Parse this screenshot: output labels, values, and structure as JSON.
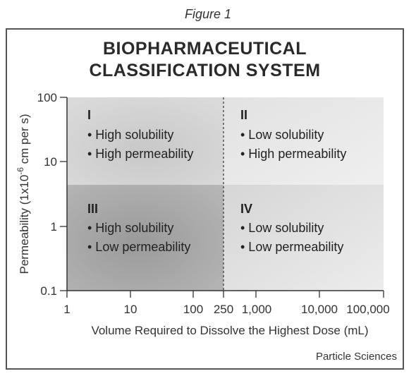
{
  "figure_label": "Figure 1",
  "title_line1": "BIOPHARMACEUTICAL",
  "title_line2": "CLASSIFICATION SYSTEM",
  "credit": "Particle Sciences",
  "axes": {
    "x_label": "Volume Required to Dissolve the Highest Dose (mL)",
    "y_label_prefix": "Permeability (1x10",
    "y_label_exp": "-6",
    "y_label_suffix": " cm per s)",
    "x_ticks": [
      "1",
      "10",
      "100",
      "250",
      "1,000",
      "10,000",
      "100,000"
    ],
    "y_ticks": [
      "100",
      "10",
      "1",
      "0.1"
    ]
  },
  "quadrants": [
    {
      "numeral": "I",
      "bullet1": "• High solubility",
      "bullet2": "• High permeability",
      "shade": "#d2d2d2"
    },
    {
      "numeral": "II",
      "bullet1": "• Low solubility",
      "bullet2": "• High permeability",
      "shade": "#e6e6e6"
    },
    {
      "numeral": "III",
      "bullet1": "• High solubility",
      "bullet2": "• Low permeability",
      "shade": "#a8a8a8"
    },
    {
      "numeral": "IV",
      "bullet1": "• Low solubility",
      "bullet2": "• Low permeability",
      "shade": "#dedede"
    }
  ]
}
